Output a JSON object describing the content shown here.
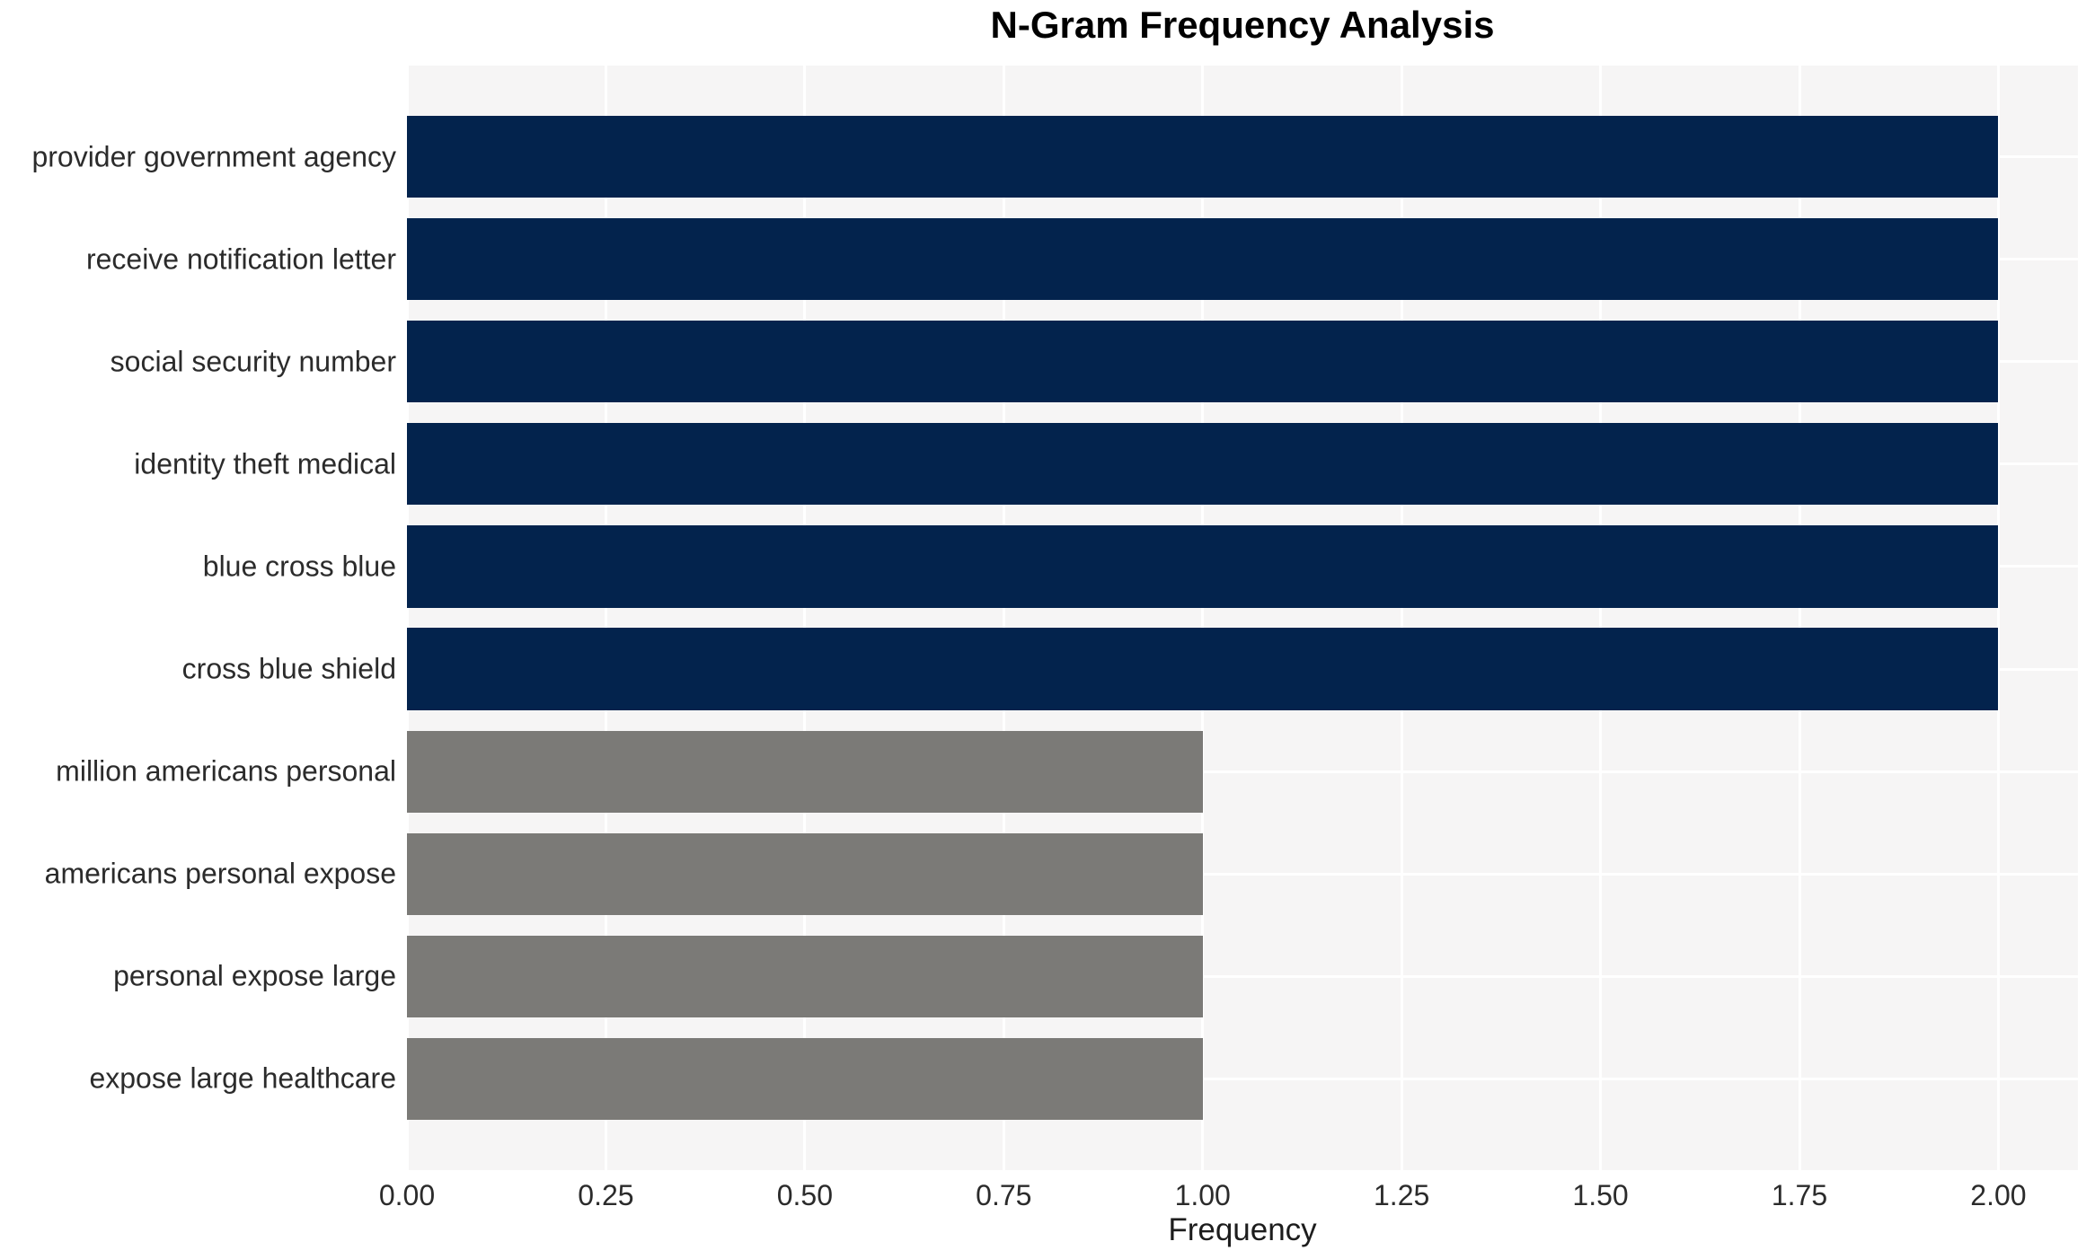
{
  "chart_data": {
    "type": "bar",
    "orientation": "horizontal",
    "title": "N-Gram Frequency Analysis",
    "xlabel": "Frequency",
    "ylabel": "",
    "categories": [
      "provider government agency",
      "receive notification letter",
      "social security number",
      "identity theft medical",
      "blue cross blue",
      "cross blue shield",
      "million americans personal",
      "americans personal expose",
      "personal expose large",
      "expose large healthcare"
    ],
    "values": [
      2,
      2,
      2,
      2,
      2,
      2,
      1,
      1,
      1,
      1
    ],
    "bar_colors": [
      "#03234d",
      "#03234d",
      "#03234d",
      "#03234d",
      "#03234d",
      "#03234d",
      "#7b7a77",
      "#7b7a77",
      "#7b7a77",
      "#7b7a77"
    ],
    "xlim": [
      0,
      2.1
    ],
    "xticks": [
      "0.00",
      "0.25",
      "0.50",
      "0.75",
      "1.00",
      "1.25",
      "1.50",
      "1.75",
      "2.00"
    ],
    "xtick_values": [
      0,
      0.25,
      0.5,
      0.75,
      1.0,
      1.25,
      1.5,
      1.75,
      2.0
    ],
    "grid": true,
    "legend": false
  },
  "colors": {
    "bar_navy": "#03234d",
    "bar_gray": "#7b7a77",
    "plot_background": "#f6f5f5",
    "gridline": "#ffffff",
    "text": "#2b2b2b",
    "title_text": "#000000"
  }
}
